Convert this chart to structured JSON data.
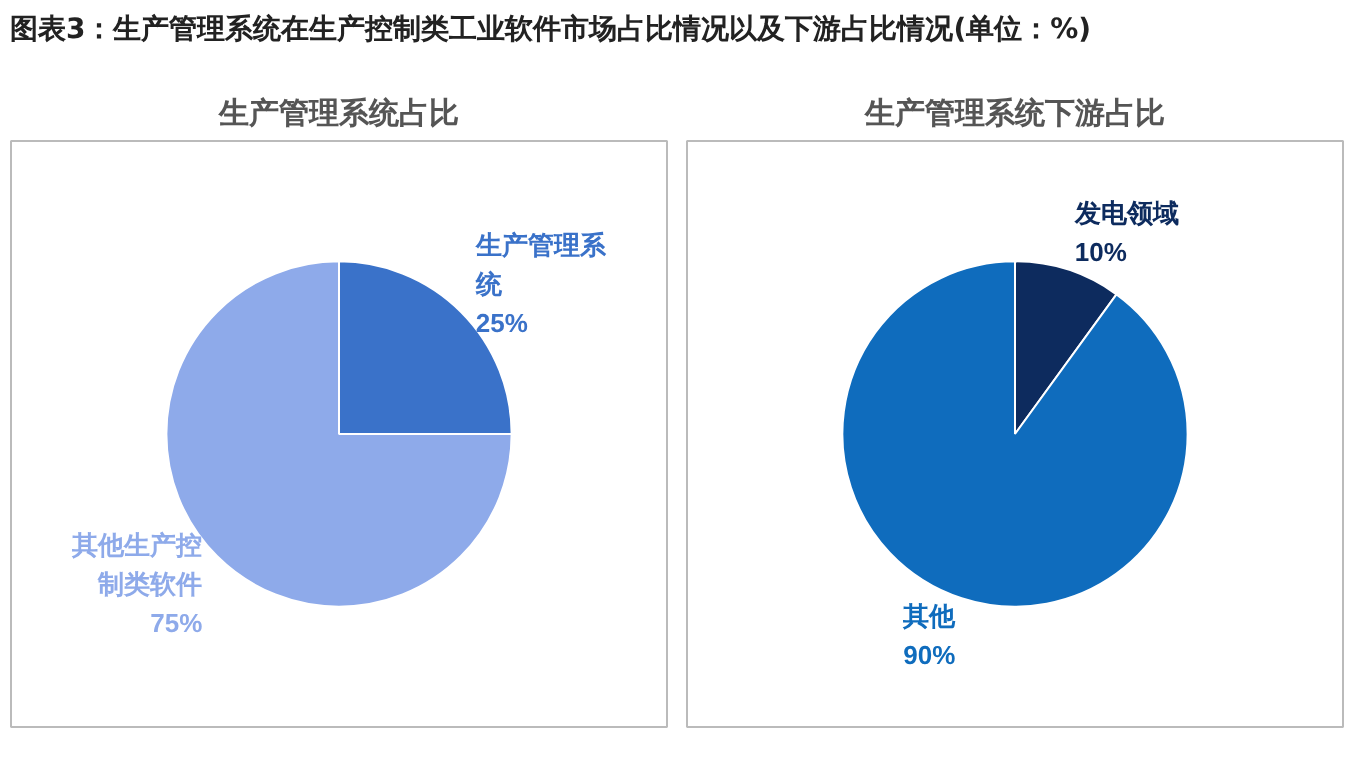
{
  "chart_data": [
    {
      "type": "pie",
      "title": "生产管理系统占比",
      "annotations": [
        "图表3：生产管理系统在生产控制类工业软件市场占比情况以及下游占比情况(单位：%)"
      ],
      "categories": [
        "生产管理系统",
        "其他生产控制类软件"
      ],
      "values": [
        25,
        75
      ],
      "colors": [
        "#3a72c9",
        "#8eaaea"
      ],
      "value_labels": [
        "25%",
        "75%"
      ]
    },
    {
      "type": "pie",
      "title": "生产管理系统下游占比",
      "categories": [
        "发电领域",
        "其他"
      ],
      "values": [
        10,
        90
      ],
      "colors": [
        "#0d2b5e",
        "#0f6cbd"
      ],
      "value_labels": [
        "10%",
        "90%"
      ]
    }
  ]
}
